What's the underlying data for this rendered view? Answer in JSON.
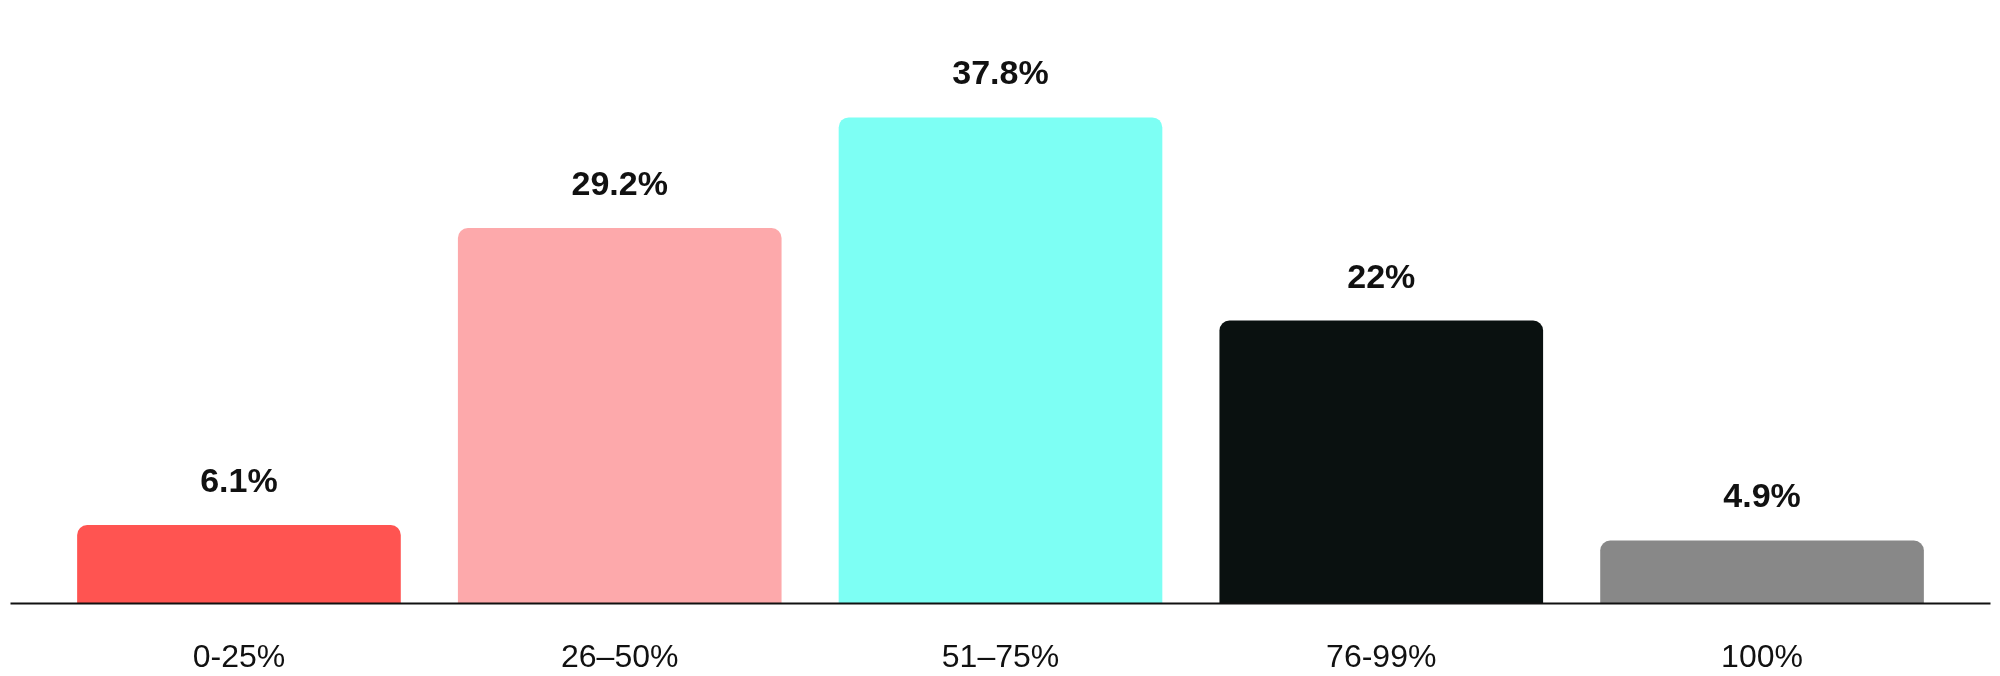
{
  "chart_data": {
    "type": "bar",
    "categories": [
      "0-25%",
      "26–50%",
      "51–75%",
      "76-99%",
      "100%"
    ],
    "values": [
      6.1,
      29.2,
      37.8,
      22,
      4.9
    ],
    "colors": [
      "#ff5451",
      "#fda9ab",
      "#7dfff4",
      "#0a1110",
      "#888888"
    ],
    "value_labels": [
      "6.1%",
      "29.2%",
      "37.8%",
      "22%",
      "4.9%"
    ],
    "grid": false
  }
}
